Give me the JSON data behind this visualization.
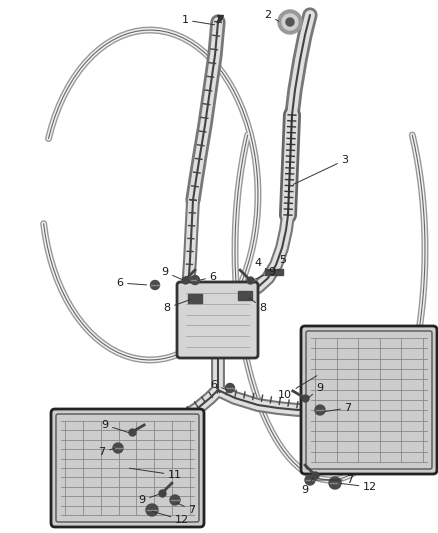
{
  "background_color": "#ffffff",
  "line_color": "#2a2a2a",
  "label_color": "#1a1a1a",
  "figsize": [
    4.38,
    5.33
  ],
  "dpi": 100,
  "pipe_outer": "#888888",
  "pipe_inner": "#e8e8e8",
  "pipe_edge": "#333333",
  "muffler_face": "#d0d0d0",
  "muffler_edge": "#333333",
  "hardware": "#3a3a3a"
}
